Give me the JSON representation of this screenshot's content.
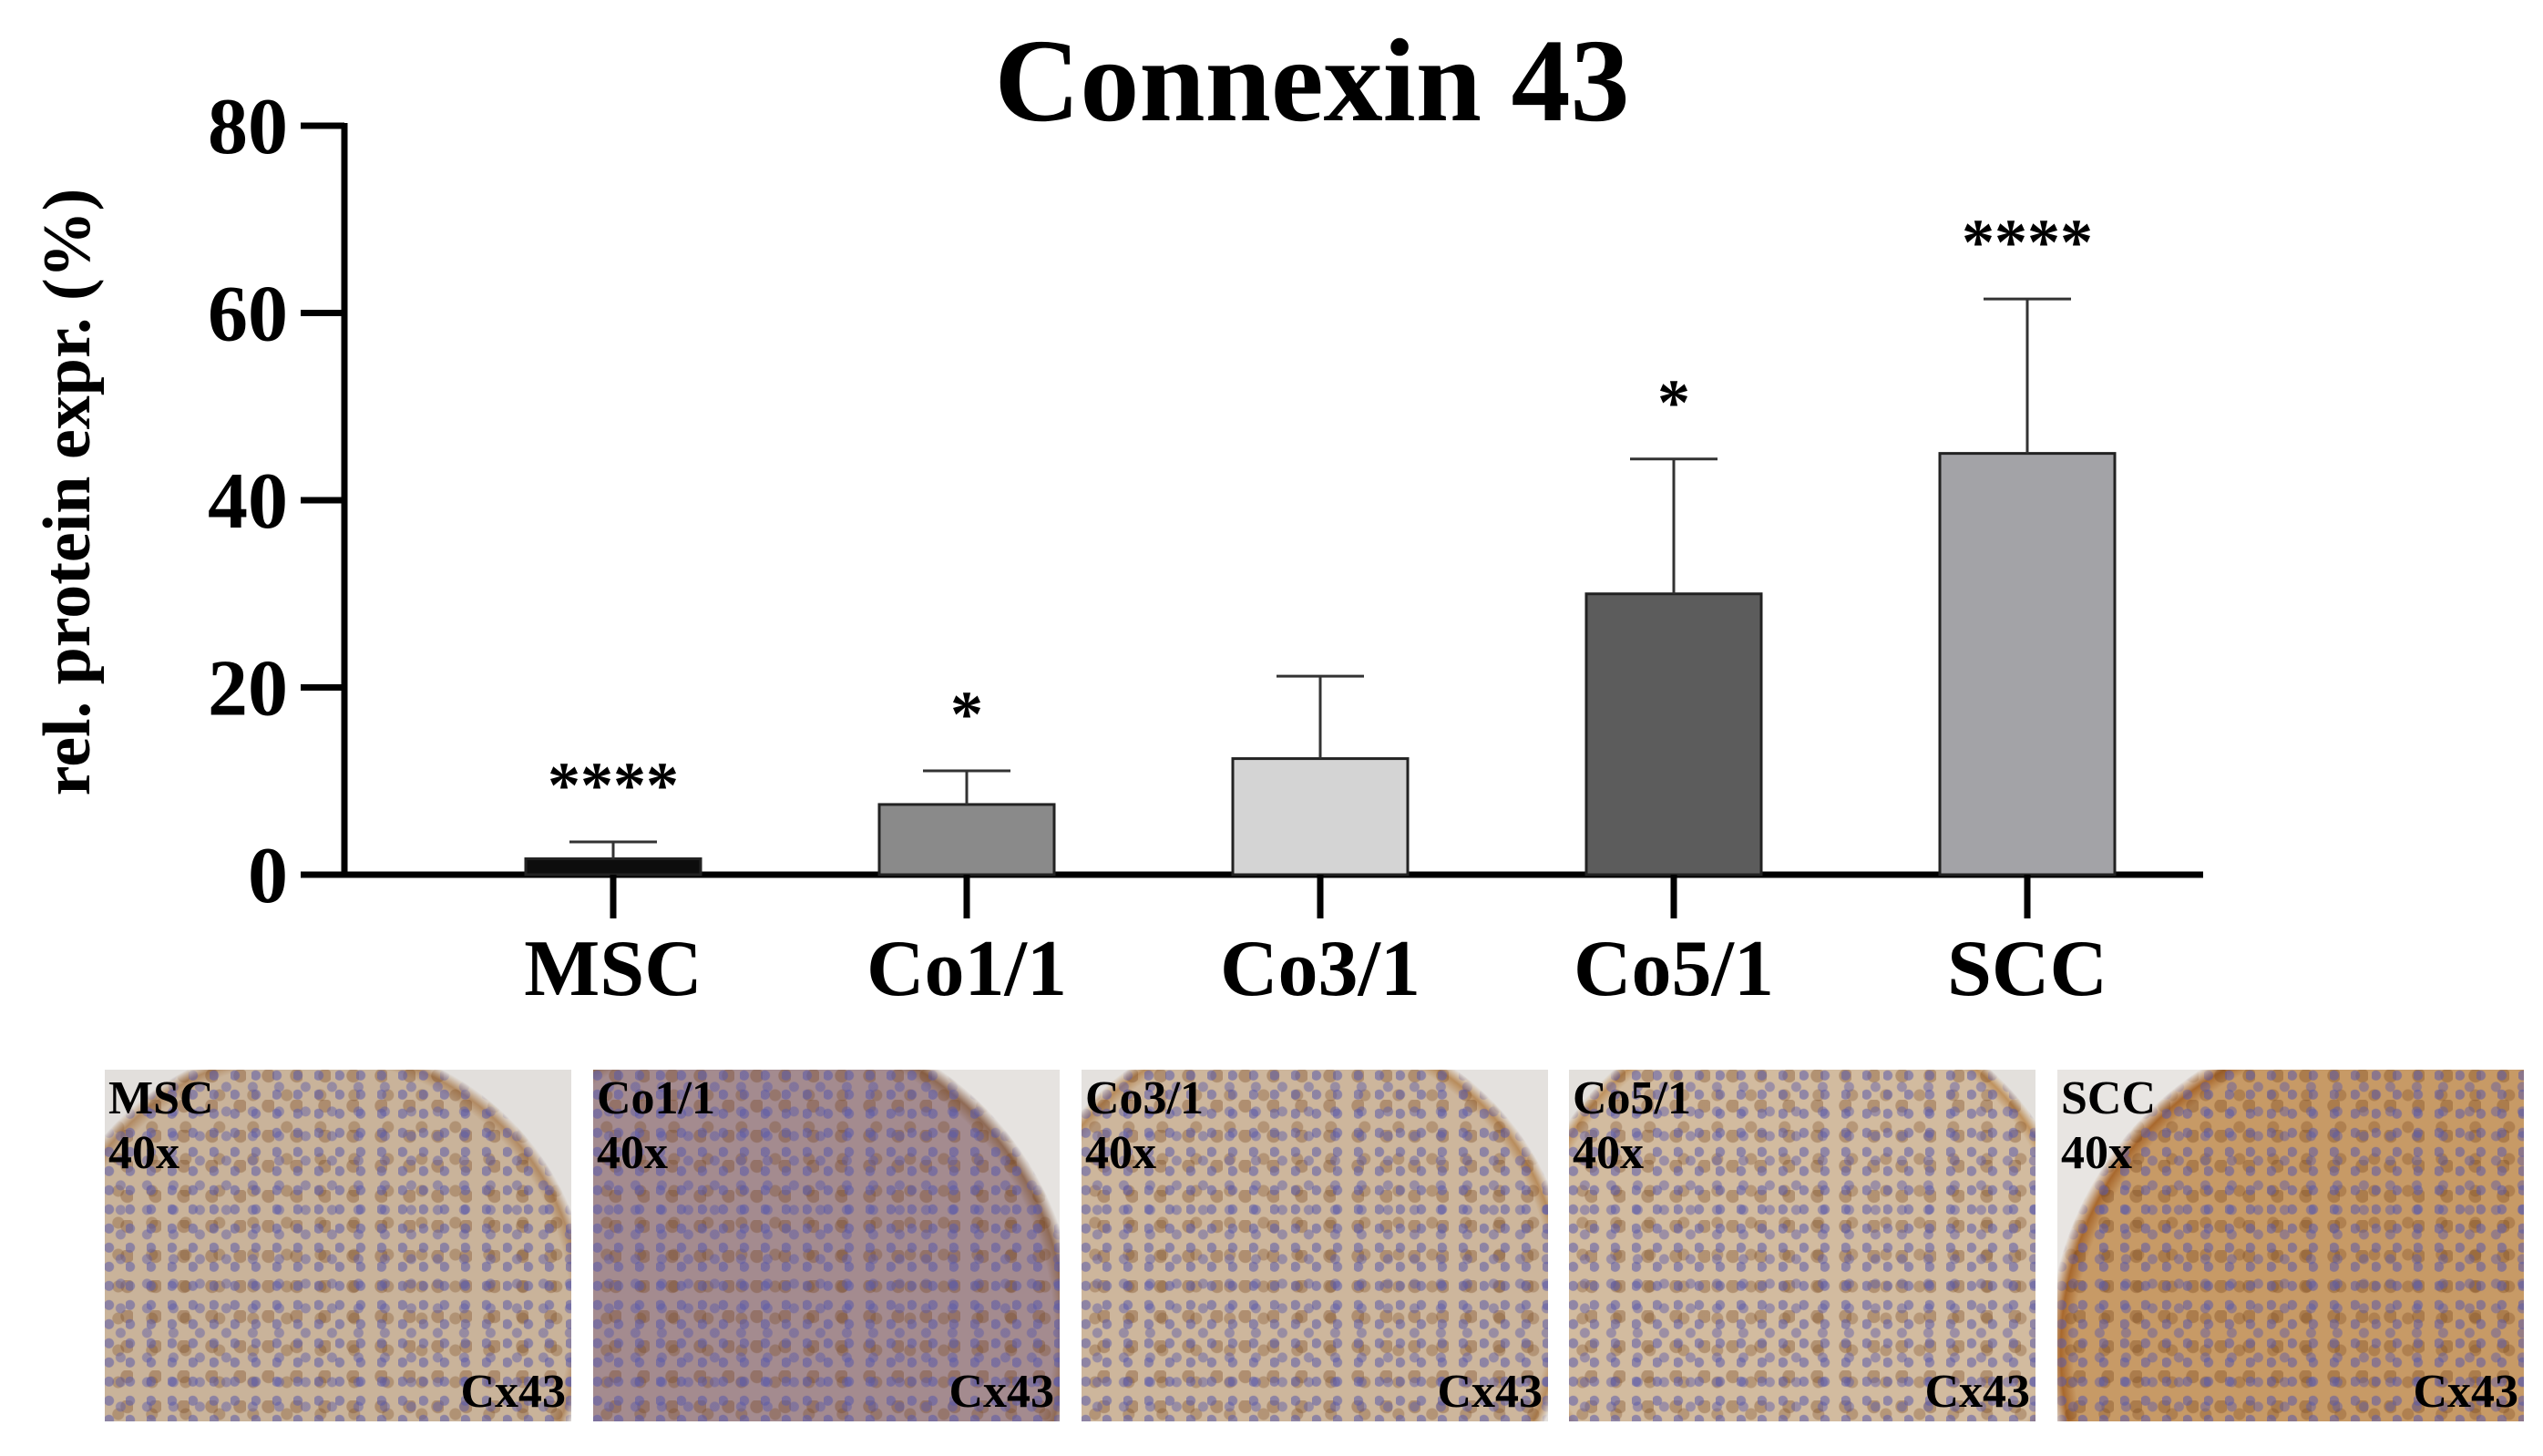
{
  "chart_data": {
    "type": "bar",
    "title": "Connexin 43",
    "ylabel": "rel. protein expr. (%)",
    "ylim": [
      0,
      80
    ],
    "yticks": [
      "0",
      "20",
      "40",
      "60",
      "80"
    ],
    "categories": [
      "MSC",
      "Co1/1",
      "Co3/1",
      "Co5/1",
      "SCC"
    ],
    "values": [
      1.7,
      7.5,
      12.4,
      30.0,
      45.0
    ],
    "errors": [
      1.8,
      3.6,
      8.8,
      14.4,
      16.5
    ],
    "significance": [
      "****",
      "*",
      "",
      "*",
      "****"
    ],
    "bar_colors": [
      "#0d0d0d",
      "#8a8a8a",
      "#d4d4d4",
      "#5c5c5c",
      "#a3a3a7"
    ]
  },
  "micrographs": [
    {
      "label": "MSC",
      "magnification": "40x",
      "marker": "Cx43",
      "tone": "#c9b39a",
      "stain": "#b18a63",
      "bg": "#e2dfdc"
    },
    {
      "label": "Co1/1",
      "magnification": "40x",
      "marker": "Cx43",
      "tone": "#a48b8f",
      "stain": "#8f6a55",
      "bg": "#e6e3e0"
    },
    {
      "label": "Co3/1",
      "magnification": "40x",
      "marker": "Cx43",
      "tone": "#cdb69c",
      "stain": "#b88c5c",
      "bg": "#e4e1de"
    },
    {
      "label": "Co5/1",
      "magnification": "40x",
      "marker": "Cx43",
      "tone": "#d2bb9f",
      "stain": "#bf925e",
      "bg": "#e3e0dc"
    },
    {
      "label": "SCC",
      "magnification": "40x",
      "marker": "Cx43",
      "tone": "#c79a66",
      "stain": "#a8682d",
      "bg": "#e8e5e2"
    }
  ]
}
